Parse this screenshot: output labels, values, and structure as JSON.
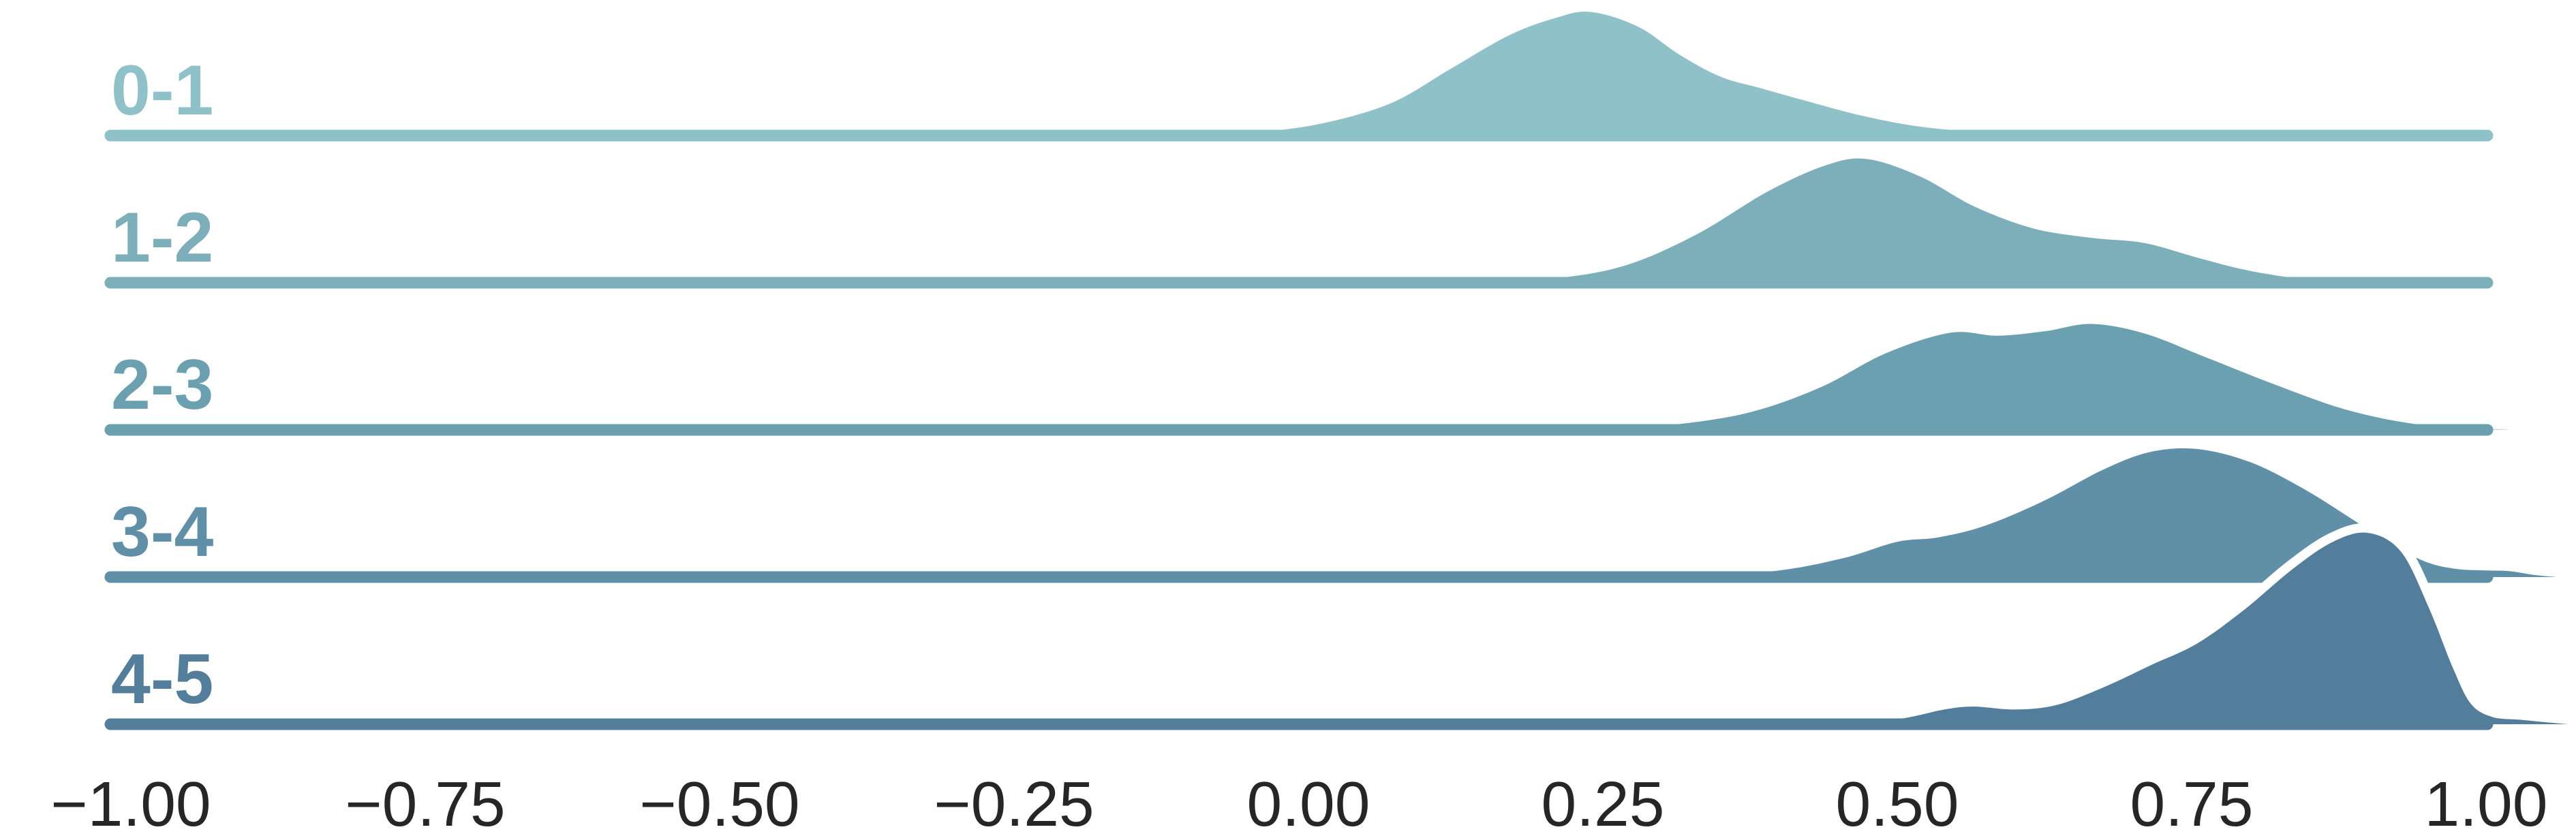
{
  "chart_data": {
    "type": "area",
    "subtype": "ridgeline-density",
    "title": "",
    "xlabel": "",
    "ylabel": "",
    "grid": false,
    "legend_position": "none",
    "background": "#ffffff",
    "x_axis": {
      "domain": [
        -1.0,
        1.0
      ],
      "ticks": [
        -1.0,
        -0.75,
        -0.5,
        -0.25,
        0.0,
        0.25,
        0.5,
        0.75,
        1.0
      ],
      "tick_labels": [
        "−1.00",
        "−0.75",
        "−0.50",
        "−0.25",
        "0.00",
        "0.25",
        "0.50",
        "0.75",
        "1.00"
      ]
    },
    "height_unit": "density height as fraction of row spacing",
    "rows_top_to_bottom": [
      "0-1",
      "1-2",
      "2-3",
      "3-4",
      "4-5"
    ],
    "series": [
      {
        "label": "0-1",
        "color": "#8fc2c8",
        "peak_x": 0.24,
        "peak_height": 0.84,
        "points": [
          [
            -0.12,
            0
          ],
          [
            -0.05,
            0.02
          ],
          [
            0.01,
            0.08
          ],
          [
            0.07,
            0.22
          ],
          [
            0.12,
            0.45
          ],
          [
            0.17,
            0.68
          ],
          [
            0.21,
            0.8
          ],
          [
            0.24,
            0.84
          ],
          [
            0.28,
            0.74
          ],
          [
            0.315,
            0.55
          ],
          [
            0.35,
            0.4
          ],
          [
            0.385,
            0.32
          ],
          [
            0.425,
            0.23
          ],
          [
            0.47,
            0.135
          ],
          [
            0.52,
            0.06
          ],
          [
            0.58,
            0.02
          ],
          [
            0.65,
            0.004
          ],
          [
            0.72,
            0
          ]
        ]
      },
      {
        "label": "1-2",
        "color": "#7dafba",
        "peak_x": 0.475,
        "peak_height": 0.84,
        "points": [
          [
            0.14,
            0
          ],
          [
            0.21,
            0.03
          ],
          [
            0.27,
            0.12
          ],
          [
            0.33,
            0.33
          ],
          [
            0.39,
            0.62
          ],
          [
            0.44,
            0.8
          ],
          [
            0.475,
            0.84
          ],
          [
            0.52,
            0.72
          ],
          [
            0.565,
            0.52
          ],
          [
            0.615,
            0.37
          ],
          [
            0.665,
            0.305
          ],
          [
            0.71,
            0.27
          ],
          [
            0.755,
            0.17
          ],
          [
            0.8,
            0.08
          ],
          [
            0.85,
            0.022
          ],
          [
            0.91,
            0
          ]
        ]
      },
      {
        "label": "2-3",
        "color": "#6ba0b1",
        "peak_x": 0.665,
        "peak_height": 0.72,
        "points": [
          [
            0.24,
            0
          ],
          [
            0.31,
            0.035
          ],
          [
            0.375,
            0.12
          ],
          [
            0.435,
            0.29
          ],
          [
            0.49,
            0.52
          ],
          [
            0.545,
            0.66
          ],
          [
            0.585,
            0.64
          ],
          [
            0.625,
            0.67
          ],
          [
            0.665,
            0.72
          ],
          [
            0.71,
            0.655
          ],
          [
            0.76,
            0.5
          ],
          [
            0.82,
            0.31
          ],
          [
            0.88,
            0.14
          ],
          [
            0.935,
            0.045
          ],
          [
            0.985,
            0.01
          ],
          [
            1.02,
            0
          ]
        ]
      },
      {
        "label": "3-4",
        "color": "#5f90a7",
        "peak_x": 0.755,
        "peak_height": 0.87,
        "points": [
          [
            0.33,
            0
          ],
          [
            0.4,
            0.045
          ],
          [
            0.455,
            0.13
          ],
          [
            0.5,
            0.24
          ],
          [
            0.535,
            0.27
          ],
          [
            0.575,
            0.35
          ],
          [
            0.625,
            0.52
          ],
          [
            0.675,
            0.73
          ],
          [
            0.715,
            0.85
          ],
          [
            0.755,
            0.87
          ],
          [
            0.8,
            0.78
          ],
          [
            0.845,
            0.6
          ],
          [
            0.885,
            0.4
          ],
          [
            0.92,
            0.22
          ],
          [
            0.95,
            0.1
          ],
          [
            0.975,
            0.055
          ],
          [
            1.0,
            0.045
          ],
          [
            1.02,
            0.04
          ],
          [
            1.04,
            0.015
          ],
          [
            1.06,
            0
          ]
        ]
      },
      {
        "label": "4-5",
        "color": "#537e9b",
        "peak_x": 0.9,
        "peak_height": 1.3,
        "points": [
          [
            0.46,
            0
          ],
          [
            0.505,
            0.04
          ],
          [
            0.54,
            0.1
          ],
          [
            0.565,
            0.12
          ],
          [
            0.6,
            0.1
          ],
          [
            0.635,
            0.13
          ],
          [
            0.675,
            0.25
          ],
          [
            0.715,
            0.4
          ],
          [
            0.755,
            0.55
          ],
          [
            0.795,
            0.78
          ],
          [
            0.835,
            1.05
          ],
          [
            0.87,
            1.24
          ],
          [
            0.9,
            1.3
          ],
          [
            0.928,
            1.17
          ],
          [
            0.952,
            0.78
          ],
          [
            0.972,
            0.38
          ],
          [
            0.987,
            0.14
          ],
          [
            1.005,
            0.05
          ],
          [
            1.03,
            0.03
          ],
          [
            1.055,
            0.01
          ],
          [
            1.07,
            0
          ]
        ]
      }
    ]
  },
  "styles": {
    "axis_text_color": "#262626",
    "ridge_outline_color": "#ffffff",
    "background": "#ffffff"
  }
}
